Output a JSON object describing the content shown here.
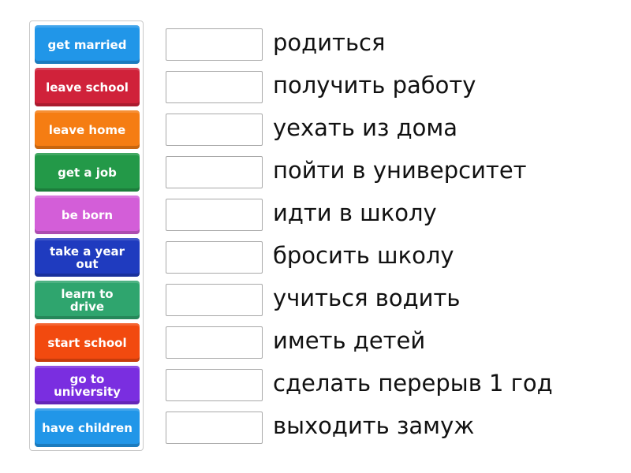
{
  "tiles": [
    {
      "label": "get married",
      "color": "#2196e8"
    },
    {
      "label": "leave school",
      "color": "#d0223a"
    },
    {
      "label": "leave home",
      "color": "#f57d13"
    },
    {
      "label": "get a job",
      "color": "#239948"
    },
    {
      "label": "be born",
      "color": "#d35ed8"
    },
    {
      "label": "take a year out",
      "color": "#1f3bbf"
    },
    {
      "label": "learn to drive",
      "color": "#2fa56e"
    },
    {
      "label": "start school",
      "color": "#f24a0f"
    },
    {
      "label": "go to university",
      "color": "#7a2ee0"
    },
    {
      "label": "have children",
      "color": "#2196e8"
    }
  ],
  "targets": [
    {
      "label": "родиться"
    },
    {
      "label": "получить работу"
    },
    {
      "label": "уехать из дома"
    },
    {
      "label": "пойти в университет"
    },
    {
      "label": "идти в школу"
    },
    {
      "label": "бросить школу"
    },
    {
      "label": "учиться водить"
    },
    {
      "label": "иметь детей"
    },
    {
      "label": "сделать перерыв 1 год"
    },
    {
      "label": "выходить замуж"
    }
  ]
}
